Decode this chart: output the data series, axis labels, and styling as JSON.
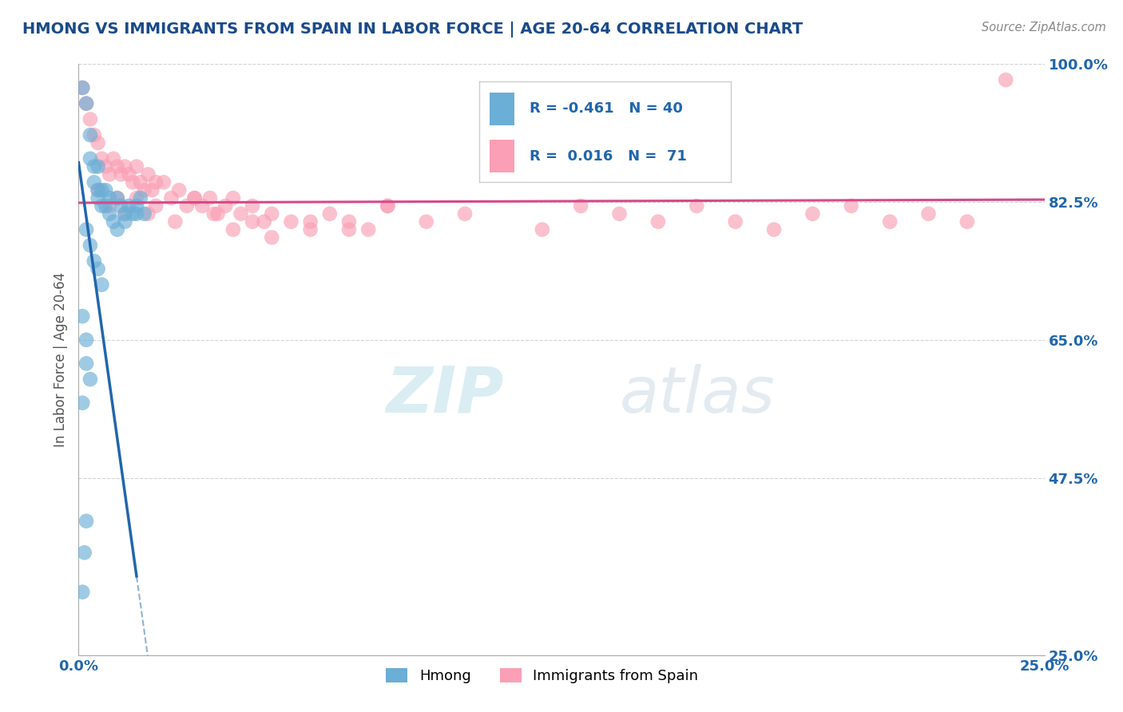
{
  "title": "HMONG VS IMMIGRANTS FROM SPAIN IN LABOR FORCE | AGE 20-64 CORRELATION CHART",
  "source_text": "Source: ZipAtlas.com",
  "ylabel": "In Labor Force | Age 20-64",
  "xmin": 0.0,
  "xmax": 0.25,
  "ymin": 0.25,
  "ymax": 1.0,
  "y_tick_values": [
    0.25,
    0.475,
    0.65,
    0.825,
    1.0
  ],
  "y_tick_labels": [
    "25.0%",
    "47.5%",
    "65.0%",
    "82.5%",
    "100.0%"
  ],
  "legend_label1": "Hmong",
  "legend_label2": "Immigrants from Spain",
  "R1": "-0.461",
  "N1": "40",
  "R2": "0.016",
  "N2": "71",
  "hmong_color": "#6baed6",
  "spain_color": "#fa9fb5",
  "hmong_line_color": "#2166ac",
  "spain_line_color": "#d6498a",
  "watermark_text": "ZIPatlas",
  "background_color": "#ffffff",
  "grid_color": "#c8c8c8",
  "title_color": "#1a4a8a",
  "source_color": "#888888",
  "legend_text_color": "#2166ac",
  "hmong_x": [
    0.001,
    0.002,
    0.003,
    0.003,
    0.004,
    0.004,
    0.005,
    0.005,
    0.005,
    0.006,
    0.006,
    0.007,
    0.007,
    0.008,
    0.008,
    0.009,
    0.01,
    0.01,
    0.011,
    0.012,
    0.012,
    0.013,
    0.014,
    0.015,
    0.015,
    0.016,
    0.017,
    0.002,
    0.003,
    0.004,
    0.005,
    0.006,
    0.001,
    0.002,
    0.002,
    0.003,
    0.001,
    0.002,
    0.0015,
    0.001
  ],
  "hmong_y": [
    0.97,
    0.95,
    0.91,
    0.88,
    0.87,
    0.85,
    0.87,
    0.84,
    0.83,
    0.84,
    0.82,
    0.84,
    0.82,
    0.83,
    0.81,
    0.8,
    0.83,
    0.79,
    0.82,
    0.81,
    0.8,
    0.82,
    0.81,
    0.82,
    0.81,
    0.83,
    0.81,
    0.79,
    0.77,
    0.75,
    0.74,
    0.72,
    0.68,
    0.65,
    0.62,
    0.6,
    0.57,
    0.42,
    0.38,
    0.33
  ],
  "spain_x": [
    0.001,
    0.002,
    0.003,
    0.004,
    0.005,
    0.006,
    0.007,
    0.008,
    0.009,
    0.01,
    0.011,
    0.012,
    0.013,
    0.014,
    0.015,
    0.016,
    0.017,
    0.018,
    0.019,
    0.02,
    0.022,
    0.024,
    0.026,
    0.028,
    0.03,
    0.032,
    0.034,
    0.036,
    0.038,
    0.04,
    0.042,
    0.045,
    0.048,
    0.05,
    0.055,
    0.06,
    0.065,
    0.07,
    0.075,
    0.08,
    0.005,
    0.008,
    0.01,
    0.012,
    0.015,
    0.018,
    0.02,
    0.025,
    0.03,
    0.035,
    0.04,
    0.045,
    0.05,
    0.06,
    0.07,
    0.08,
    0.09,
    0.1,
    0.12,
    0.13,
    0.14,
    0.15,
    0.16,
    0.17,
    0.18,
    0.19,
    0.2,
    0.21,
    0.22,
    0.23,
    0.24
  ],
  "spain_y": [
    0.97,
    0.95,
    0.93,
    0.91,
    0.9,
    0.88,
    0.87,
    0.86,
    0.88,
    0.87,
    0.86,
    0.87,
    0.86,
    0.85,
    0.87,
    0.85,
    0.84,
    0.86,
    0.84,
    0.85,
    0.85,
    0.83,
    0.84,
    0.82,
    0.83,
    0.82,
    0.83,
    0.81,
    0.82,
    0.83,
    0.81,
    0.82,
    0.8,
    0.81,
    0.8,
    0.79,
    0.81,
    0.8,
    0.79,
    0.82,
    0.84,
    0.82,
    0.83,
    0.81,
    0.83,
    0.81,
    0.82,
    0.8,
    0.83,
    0.81,
    0.79,
    0.8,
    0.78,
    0.8,
    0.79,
    0.82,
    0.8,
    0.81,
    0.79,
    0.82,
    0.81,
    0.8,
    0.82,
    0.8,
    0.79,
    0.81,
    0.82,
    0.8,
    0.81,
    0.8,
    0.98
  ]
}
